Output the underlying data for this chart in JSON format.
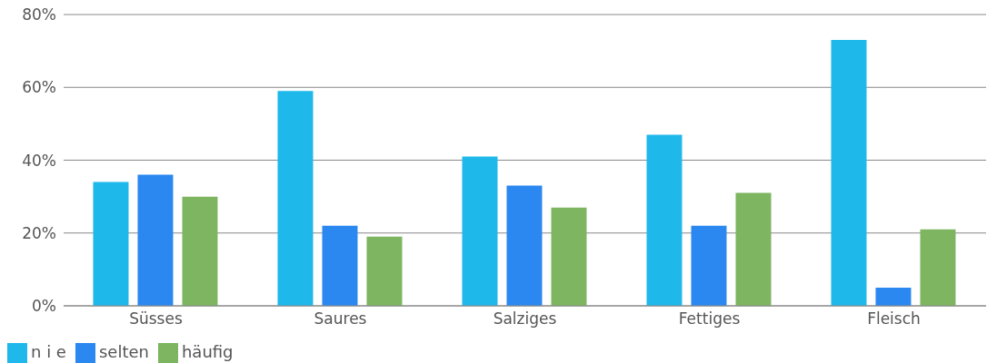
{
  "chart_data": {
    "type": "bar",
    "categories": [
      "Süsses",
      "Saures",
      "Salziges",
      "Fettiges",
      "Fleisch"
    ],
    "series": [
      {
        "name": "n i e",
        "color": "#1fb8ea",
        "values": [
          34,
          59,
          41,
          47,
          73
        ]
      },
      {
        "name": "selten",
        "color": "#2a88f0",
        "values": [
          36,
          22,
          33,
          22,
          5
        ]
      },
      {
        "name": "häufig",
        "color": "#7db560",
        "values": [
          30,
          19,
          27,
          31,
          21
        ]
      }
    ],
    "ylim": [
      0,
      80
    ],
    "yticks": [
      {
        "value": 0,
        "label": "0%"
      },
      {
        "value": 20,
        "label": "20%"
      },
      {
        "value": 40,
        "label": "40%"
      },
      {
        "value": 60,
        "label": "60%"
      },
      {
        "value": 80,
        "label": "80%"
      }
    ],
    "grid": "y",
    "legend": "bottom left"
  }
}
